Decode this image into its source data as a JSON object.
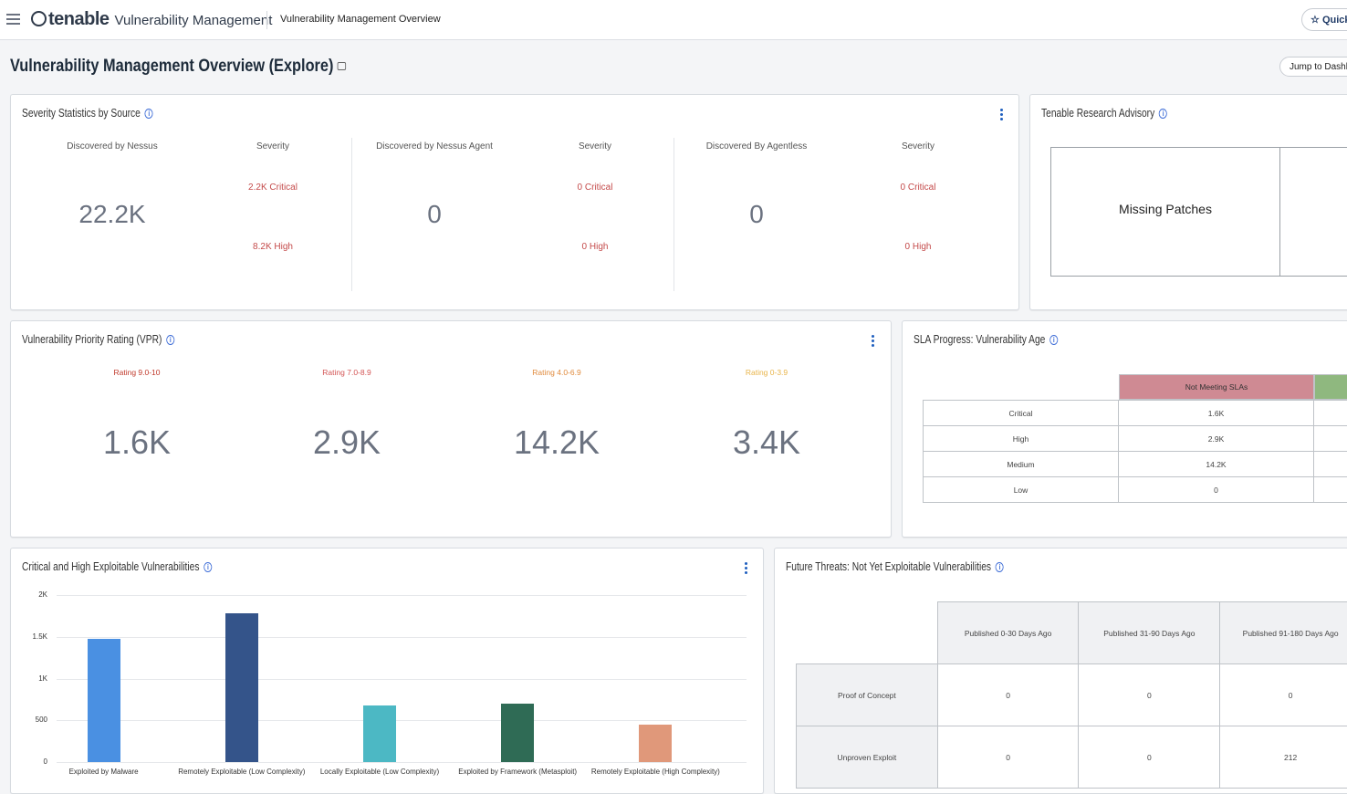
{
  "topbar": {
    "brand": "tenable",
    "product": "Vulnerability Management",
    "breadcrumb": "Vulnerability Management Overview",
    "quick_label": "Quick"
  },
  "page": {
    "title": "Vulnerability Management Overview (Explore)",
    "jump_label": "Jump to Dashb"
  },
  "severity_stats": {
    "title": "Severity Statistics by Source",
    "sources": [
      {
        "label": "Discovered by Nessus",
        "value": "22.2K",
        "severity_label": "Severity",
        "critical": "2.2K Critical",
        "high": "8.2K High"
      },
      {
        "label": "Discovered by Nessus Agent",
        "value": "0",
        "severity_label": "Severity",
        "critical": "0 Critical",
        "high": "0 High"
      },
      {
        "label": "Discovered By Agentless",
        "value": "0",
        "severity_label": "Severity",
        "critical": "0 Critical",
        "high": "0 High"
      }
    ]
  },
  "research_advisory": {
    "title": "Tenable Research Advisory",
    "tile_label": "Missing Patches"
  },
  "vpr": {
    "title": "Vulnerability Priority Rating (VPR)",
    "ratings": [
      {
        "label": "Rating 9.0-10",
        "value": "1.6K",
        "color": "#c0392b"
      },
      {
        "label": "Rating 7.0-8.9",
        "value": "2.9K",
        "color": "#d35454"
      },
      {
        "label": "Rating 4.0-6.9",
        "value": "14.2K",
        "color": "#e08a3c"
      },
      {
        "label": "Rating 0-3.9",
        "value": "3.4K",
        "color": "#e8b44a"
      }
    ]
  },
  "sla": {
    "title": "SLA Progress: Vulnerability Age",
    "header": "Not Meeting SLAs",
    "header_color": "#cf8a93",
    "meeting_color": "#8fb87f",
    "rows": [
      {
        "label": "Critical",
        "value": "1.6K"
      },
      {
        "label": "High",
        "value": "2.9K"
      },
      {
        "label": "Medium",
        "value": "14.2K"
      },
      {
        "label": "Low",
        "value": "0"
      }
    ]
  },
  "exploitable": {
    "title": "Critical and High Exploitable Vulnerabilities"
  },
  "chart_data": {
    "type": "bar",
    "title": "Critical and High Exploitable Vulnerabilities",
    "categories": [
      "Exploited by Malware",
      "Remotely Exploitable (Low Complexity)",
      "Locally Exploitable (Low Complexity)",
      "Exploited by Framework (Metasploit)",
      "Remotely Exploitable (High Complexity)"
    ],
    "values": [
      1480,
      1780,
      680,
      700,
      450
    ],
    "colors": [
      "#4a90e2",
      "#34548a",
      "#4cb8c4",
      "#2f6b55",
      "#e0987a"
    ],
    "ylim": [
      0,
      2000
    ],
    "yticks": [
      0,
      500,
      1000,
      1500,
      2000
    ],
    "ytick_labels": [
      "0",
      "500",
      "1K",
      "1.5K",
      "2K"
    ],
    "grid": true
  },
  "future_threats": {
    "title": "Future Threats: Not Yet Exploitable Vulnerabilities",
    "columns": [
      "Published 0-30 Days Ago",
      "Published 31-90 Days Ago",
      "Published 91-180 Days Ago"
    ],
    "rows": [
      {
        "label": "Proof of Concept",
        "values": [
          "0",
          "0",
          "0"
        ]
      },
      {
        "label": "Unproven Exploit",
        "values": [
          "0",
          "0",
          "212"
        ]
      }
    ]
  }
}
